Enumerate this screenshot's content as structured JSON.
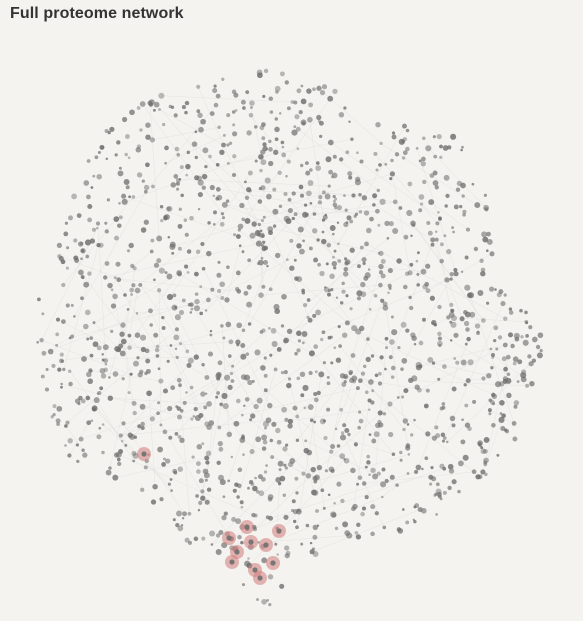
{
  "header": {
    "title": "Full proteome network"
  },
  "network": {
    "node_color": "#6f6f6f",
    "edge_color": "#dcdcdc",
    "highlight_color": "#d27a7a",
    "highlighted_node_count": 11
  }
}
